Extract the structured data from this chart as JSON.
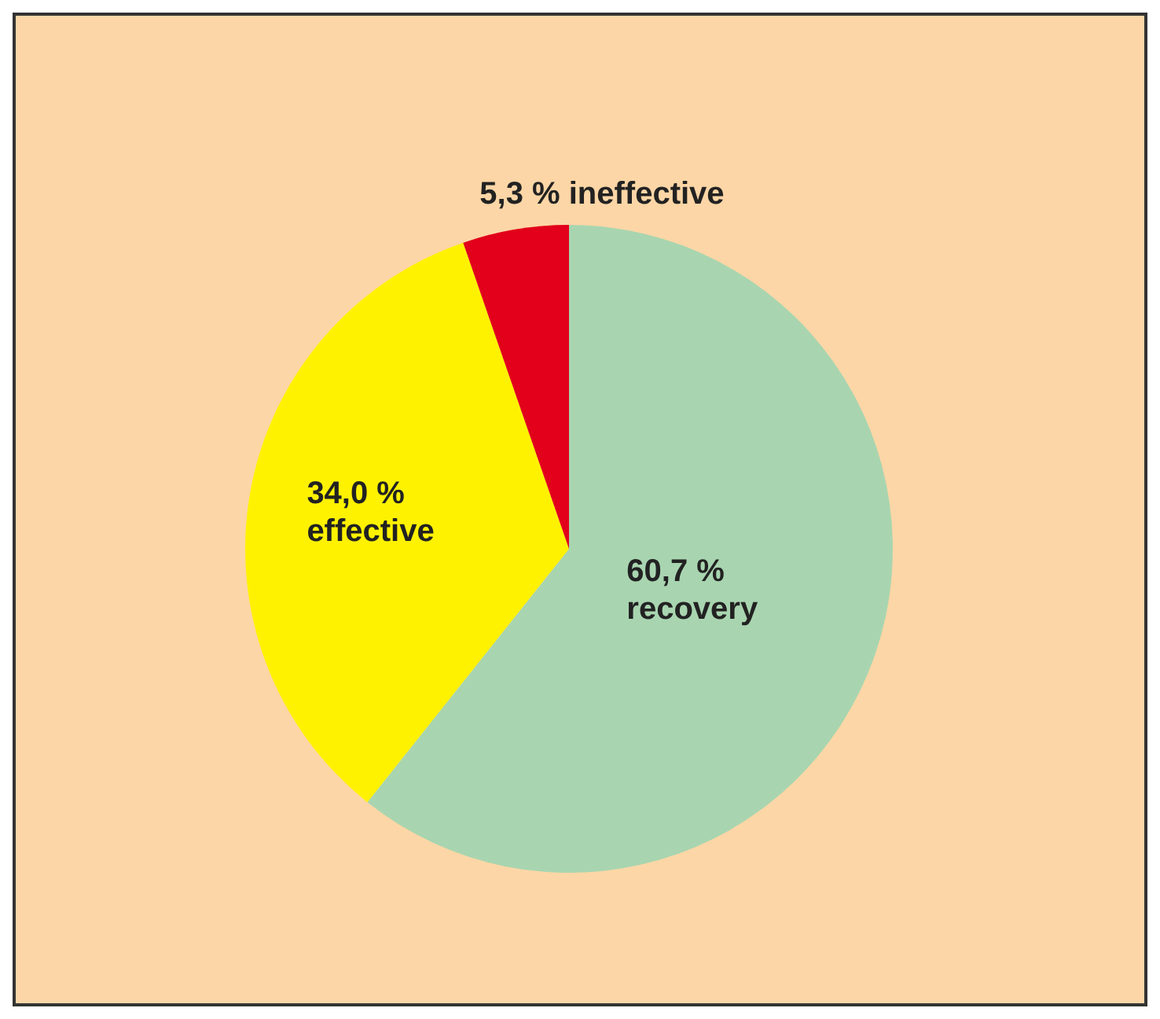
{
  "chart_data": {
    "type": "pie",
    "categories": [
      "recovery",
      "effective",
      "ineffective"
    ],
    "values": [
      60.7,
      34.0,
      5.3
    ],
    "colors": [
      "#a8d5b0",
      "#fff200",
      "#e2001a"
    ],
    "value_labels": [
      "60,7 %",
      "34,0 %",
      "5,3 %"
    ]
  }
}
